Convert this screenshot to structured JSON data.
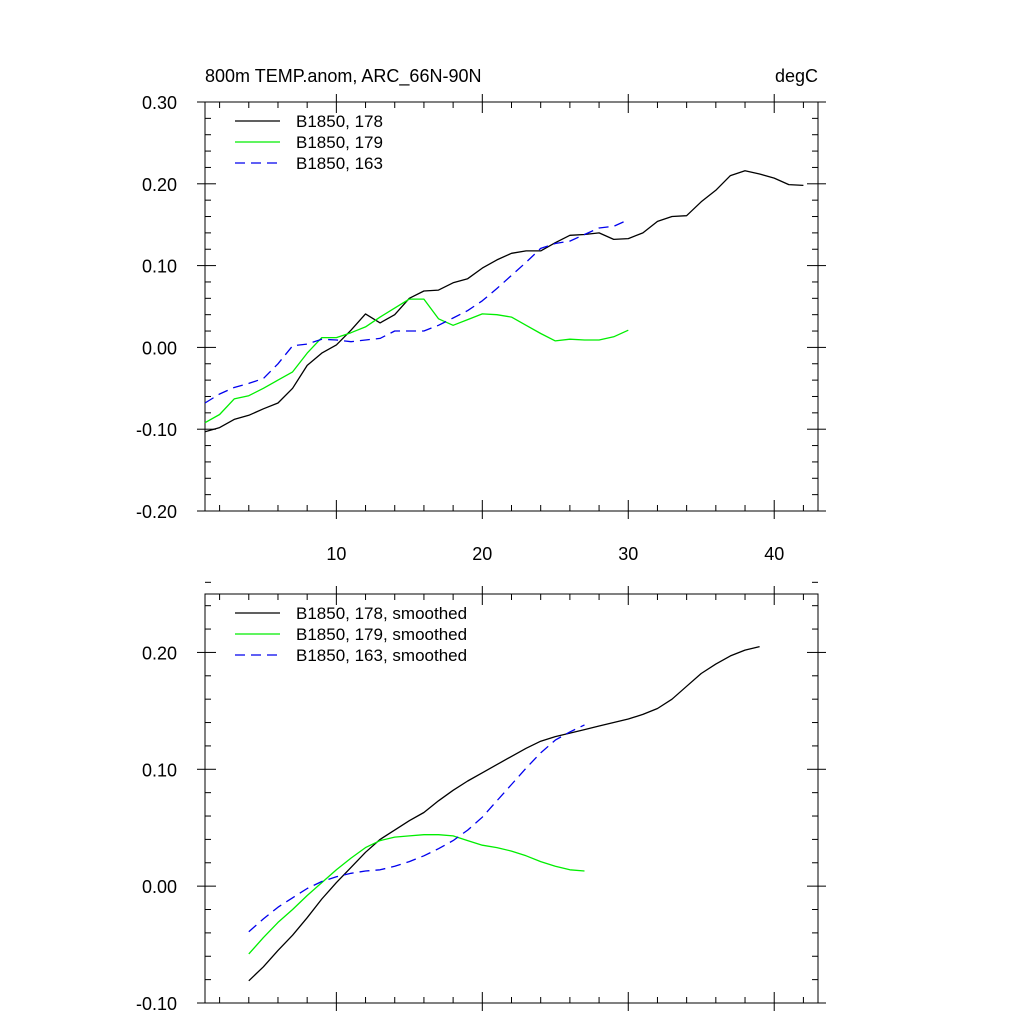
{
  "chart_data": [
    {
      "type": "line",
      "title": "800m TEMP.anom, ARC_66N-90N",
      "units": "degC",
      "xlim": [
        1,
        43
      ],
      "ylim": [
        -0.2,
        0.3
      ],
      "xticks": [
        10,
        20,
        30,
        40
      ],
      "xtick_labels": [
        "10",
        "20",
        "30",
        "40"
      ],
      "yticks": [
        -0.2,
        -0.1,
        0.0,
        0.1,
        0.2,
        0.3
      ],
      "ytick_labels": [
        "-0.20",
        "-0.10",
        "0.00",
        "0.10",
        "0.20",
        "0.30"
      ],
      "legend_position": "top-left",
      "series": [
        {
          "name": "B1850, 178",
          "color": "#000000",
          "dash": "solid",
          "x": [
            1,
            2,
            3,
            4,
            5,
            6,
            7,
            8,
            9,
            10,
            11,
            12,
            13,
            14,
            15,
            16,
            17,
            18,
            19,
            20,
            21,
            22,
            23,
            24,
            25,
            26,
            27,
            28,
            29,
            30,
            31,
            32,
            33,
            34,
            35,
            36,
            37,
            38,
            39,
            40,
            41,
            42
          ],
          "y": [
            -0.103,
            -0.098,
            -0.088,
            -0.083,
            -0.075,
            -0.068,
            -0.05,
            -0.022,
            -0.007,
            0.003,
            0.021,
            0.041,
            0.03,
            0.04,
            0.06,
            0.069,
            0.07,
            0.079,
            0.084,
            0.097,
            0.107,
            0.115,
            0.118,
            0.118,
            0.128,
            0.137,
            0.138,
            0.14,
            0.132,
            0.133,
            0.14,
            0.154,
            0.16,
            0.161,
            0.178,
            0.192,
            0.21,
            0.216,
            0.212,
            0.207,
            0.199,
            0.198
          ]
        },
        {
          "name": "B1850, 179",
          "color": "#00ee00",
          "dash": "solid",
          "x": [
            1,
            2,
            3,
            4,
            5,
            6,
            7,
            8,
            9,
            10,
            11,
            12,
            13,
            14,
            15,
            16,
            17,
            18,
            19,
            20,
            21,
            22,
            23,
            24,
            25,
            26,
            27,
            28,
            29,
            30
          ],
          "y": [
            -0.092,
            -0.082,
            -0.063,
            -0.059,
            -0.05,
            -0.04,
            -0.03,
            -0.007,
            0.012,
            0.012,
            0.018,
            0.025,
            0.037,
            0.048,
            0.059,
            0.059,
            0.035,
            0.027,
            0.034,
            0.041,
            0.04,
            0.037,
            0.027,
            0.017,
            0.008,
            0.01,
            0.009,
            0.009,
            0.013,
            0.021
          ]
        },
        {
          "name": "B1850, 163",
          "color": "#0000ee",
          "dash": "dashed",
          "x": [
            1,
            2,
            3,
            4,
            5,
            6,
            7,
            8,
            9,
            10,
            11,
            12,
            13,
            14,
            15,
            16,
            17,
            18,
            19,
            20,
            21,
            22,
            23,
            24,
            25,
            26,
            27,
            28,
            29,
            30
          ],
          "y": [
            -0.068,
            -0.057,
            -0.049,
            -0.044,
            -0.038,
            -0.02,
            0.002,
            0.004,
            0.01,
            0.009,
            0.007,
            0.009,
            0.011,
            0.02,
            0.02,
            0.02,
            0.027,
            0.036,
            0.045,
            0.057,
            0.072,
            0.088,
            0.104,
            0.121,
            0.127,
            0.13,
            0.138,
            0.146,
            0.148,
            0.156
          ]
        }
      ]
    },
    {
      "type": "line",
      "title": "",
      "xlim": [
        1,
        43
      ],
      "ylim": [
        -0.1,
        0.25
      ],
      "xticks": [
        10,
        20,
        30,
        40
      ],
      "xtick_labels": [],
      "yticks": [
        -0.1,
        0.0,
        0.1,
        0.2
      ],
      "ytick_labels": [
        "-0.10",
        "0.00",
        "0.10",
        "0.20"
      ],
      "legend_position": "top-left",
      "series": [
        {
          "name": "B1850, 178, smoothed",
          "color": "#000000",
          "dash": "solid",
          "x": [
            4,
            5,
            6,
            7,
            8,
            9,
            10,
            11,
            12,
            13,
            14,
            15,
            16,
            17,
            18,
            19,
            20,
            21,
            22,
            23,
            24,
            25,
            26,
            27,
            28,
            29,
            30,
            31,
            32,
            33,
            34,
            35,
            36,
            37,
            38,
            39
          ],
          "y": [
            -0.081,
            -0.069,
            -0.055,
            -0.042,
            -0.027,
            -0.011,
            0.003,
            0.016,
            0.029,
            0.04,
            0.048,
            0.056,
            0.063,
            0.073,
            0.082,
            0.09,
            0.097,
            0.104,
            0.111,
            0.118,
            0.124,
            0.128,
            0.131,
            0.134,
            0.137,
            0.14,
            0.143,
            0.147,
            0.152,
            0.16,
            0.171,
            0.182,
            0.19,
            0.197,
            0.202,
            0.205
          ]
        },
        {
          "name": "B1850, 179, smoothed",
          "color": "#00ee00",
          "dash": "solid",
          "x": [
            4,
            5,
            6,
            7,
            8,
            9,
            10,
            11,
            12,
            13,
            14,
            15,
            16,
            17,
            18,
            19,
            20,
            21,
            22,
            23,
            24,
            25,
            26,
            27
          ],
          "y": [
            -0.058,
            -0.044,
            -0.031,
            -0.02,
            -0.008,
            0.003,
            0.014,
            0.024,
            0.033,
            0.039,
            0.042,
            0.043,
            0.044,
            0.044,
            0.043,
            0.039,
            0.035,
            0.033,
            0.03,
            0.026,
            0.021,
            0.017,
            0.014,
            0.013
          ]
        },
        {
          "name": "B1850, 163, smoothed",
          "color": "#0000ee",
          "dash": "dashed",
          "x": [
            4,
            5,
            6,
            7,
            8,
            9,
            10,
            11,
            12,
            13,
            14,
            15,
            16,
            17,
            18,
            19,
            20,
            21,
            22,
            23,
            24,
            25,
            26,
            27
          ],
          "y": [
            -0.039,
            -0.028,
            -0.018,
            -0.01,
            -0.002,
            0.004,
            0.008,
            0.011,
            0.013,
            0.014,
            0.017,
            0.021,
            0.026,
            0.032,
            0.039,
            0.048,
            0.059,
            0.073,
            0.087,
            0.101,
            0.114,
            0.125,
            0.132,
            0.138
          ]
        }
      ]
    }
  ]
}
